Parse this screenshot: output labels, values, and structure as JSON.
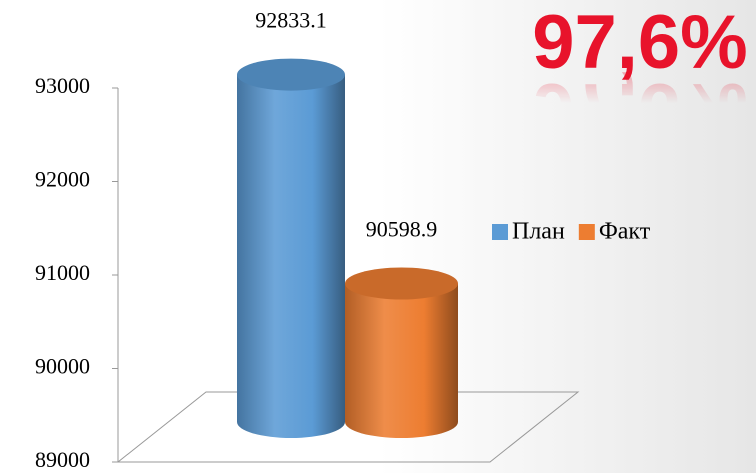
{
  "chart_data": {
    "type": "bar",
    "annotation": "97,6%",
    "categories": [
      null
    ],
    "series": [
      {
        "name": "План",
        "color": "#5b9bd5",
        "values": [
          92833.1
        ]
      },
      {
        "name": "Факт",
        "color": "#ed7d31",
        "values": [
          90598.9
        ]
      }
    ],
    "ylim": [
      89000,
      93000
    ],
    "yticks": [
      89000,
      90000,
      91000,
      92000,
      93000
    ],
    "legend": "right"
  }
}
